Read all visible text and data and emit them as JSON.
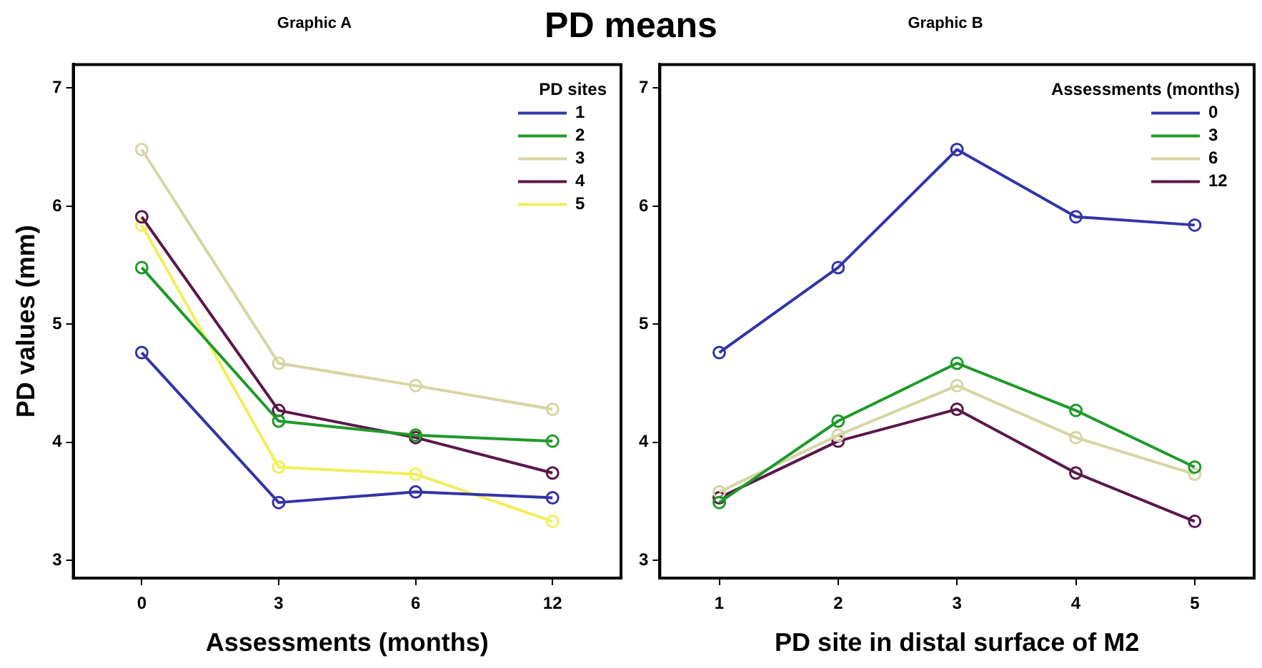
{
  "chart_data": [
    {
      "type": "line",
      "title": "Graphic A",
      "annotations": [
        "PD means"
      ],
      "xlabel": "Assessments (months)",
      "ylabel": "PD values (mm)",
      "categories": [
        "0",
        "3",
        "6",
        "12"
      ],
      "ylim": [
        2.85,
        7.2
      ],
      "yticks": [
        3,
        4,
        5,
        6,
        7
      ],
      "legend": "top right",
      "legend_title": "PD sites",
      "marker": "circle",
      "series": [
        {
          "name": "1",
          "color": "#3434a8",
          "values": [
            4.76,
            3.49,
            3.58,
            3.53
          ]
        },
        {
          "name": "2",
          "color": "#1e9a2a",
          "values": [
            5.48,
            4.18,
            4.06,
            4.01
          ]
        },
        {
          "name": "3",
          "color": "#d6d6a4",
          "values": [
            6.48,
            4.67,
            4.48,
            4.28
          ]
        },
        {
          "name": "4",
          "color": "#5a1848",
          "values": [
            5.91,
            4.27,
            4.04,
            3.74
          ]
        },
        {
          "name": "5",
          "color": "#f2ee5a",
          "values": [
            5.84,
            3.79,
            3.73,
            3.33
          ]
        }
      ]
    },
    {
      "type": "line",
      "title": "Graphic B",
      "xlabel": "PD site in distal surface of M2",
      "categories": [
        "1",
        "2",
        "3",
        "4",
        "5"
      ],
      "ylim": [
        2.85,
        7.2
      ],
      "yticks": [
        3,
        4,
        5,
        6,
        7
      ],
      "legend": "top right",
      "legend_title": "Assessments (months)",
      "marker": "circle",
      "series": [
        {
          "name": "0",
          "color": "#3434a8",
          "values": [
            4.76,
            5.48,
            6.48,
            5.91,
            5.84
          ]
        },
        {
          "name": "3",
          "color": "#1e9a2a",
          "values": [
            3.49,
            4.18,
            4.67,
            4.27,
            3.79
          ]
        },
        {
          "name": "6",
          "color": "#d6d6a4",
          "values": [
            3.58,
            4.06,
            4.48,
            4.04,
            3.73
          ]
        },
        {
          "name": "12",
          "color": "#5a1848",
          "values": [
            3.53,
            4.01,
            4.28,
            3.74,
            3.33
          ]
        }
      ]
    }
  ]
}
